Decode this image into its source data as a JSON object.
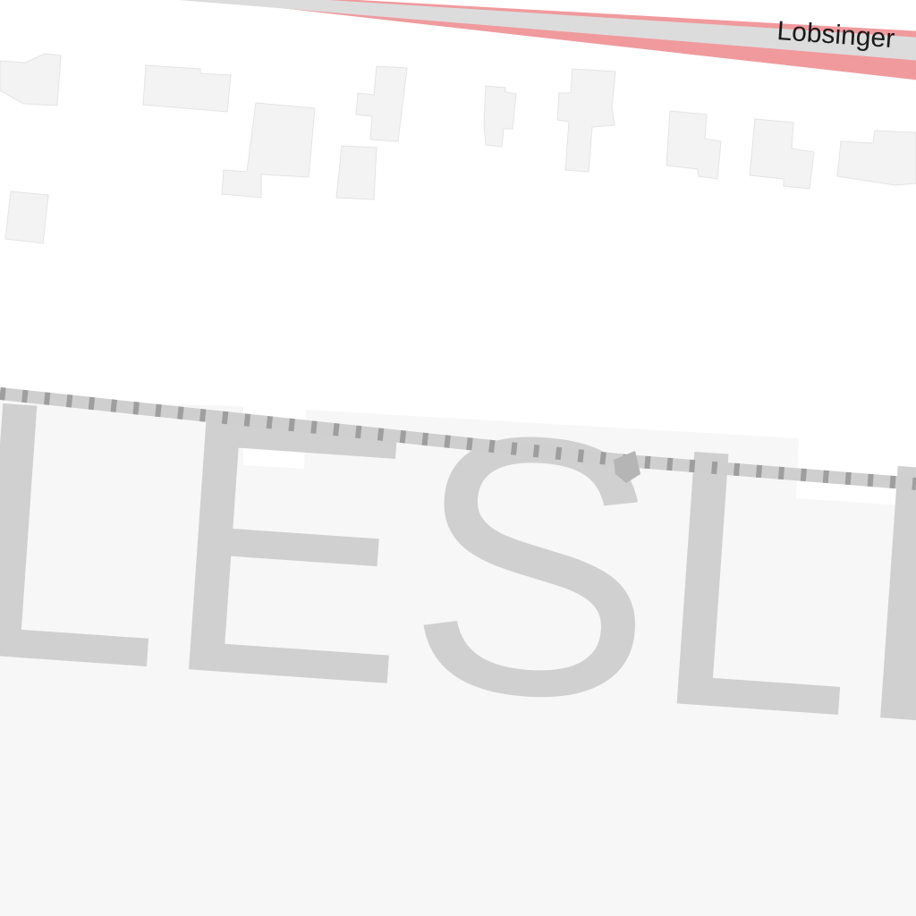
{
  "map": {
    "road_name": "Lobsinger",
    "area_name": "LESLEY",
    "colors": {
      "background": "#ffffff",
      "area_fill": "#f7f7f7",
      "road_casing": "#f09a9e",
      "road_fill": "#dcdcdc",
      "railway_base": "#cfcfcf",
      "railway_dash": "#9e9e9e",
      "building_fill": "#f3f3f3",
      "area_label": "#d0d0d0"
    }
  }
}
